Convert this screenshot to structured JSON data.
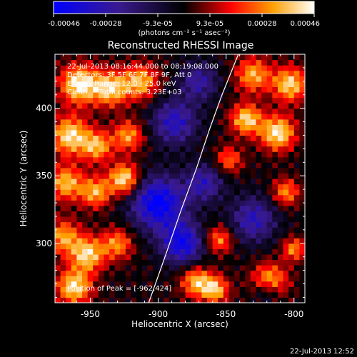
{
  "colorbar": {
    "tick_labels": [
      "-0.00046",
      "-0.00028",
      "-9.3e-05",
      "9.3e-05",
      "0.00028",
      "0.00046"
    ],
    "units_label": "(photons cm⁻² s⁻¹ asec⁻²)",
    "colormap": [
      "#0000ff",
      "#3a1a8f",
      "#000000",
      "#ff0000",
      "#ffa000",
      "#ffffff"
    ]
  },
  "chart_data": {
    "type": "heatmap",
    "title": "Reconstructed RHESSI Image",
    "xlabel": "Heliocentric X (arcsec)",
    "ylabel": "Heliocentric Y (arcsec)",
    "xlim": [
      -976,
      -792
    ],
    "ylim": [
      256,
      440
    ],
    "x_ticks": [
      -950,
      -900,
      -850,
      -800
    ],
    "x_tick_labels": [
      "-950",
      "-900",
      "-850",
      "-800"
    ],
    "y_ticks": [
      300,
      350,
      400
    ],
    "y_tick_labels": [
      "300",
      "350",
      "400"
    ],
    "color_range": [
      -0.00046,
      0.00046
    ],
    "annotations": [
      "22-Jul-2013 08:16:44.000 to 08:19:08.000",
      "Detectors: 3F 5F 6F 7F 8F 9F, Att 0",
      "Energy Range: 12.0 - 25.0 keV",
      "Clean     Total counts: 3.23E+03"
    ],
    "peak_label": "Position of Peak = [-962,424]",
    "limb_curve": {
      "x": [
        -907,
        -895,
        -883,
        -872,
        -862,
        -853,
        -843,
        -833
      ],
      "y": [
        256,
        290,
        325,
        355,
        385,
        410,
        435,
        460
      ]
    },
    "hot_regions": [
      {
        "x": -958,
        "y": 418,
        "sigma": 10,
        "value": 0.00046
      },
      {
        "x": -935,
        "y": 415,
        "sigma": 9,
        "value": 0.0004
      },
      {
        "x": -913,
        "y": 420,
        "sigma": 9,
        "value": 0.00036
      },
      {
        "x": -965,
        "y": 380,
        "sigma": 10,
        "value": 0.00042
      },
      {
        "x": -945,
        "y": 372,
        "sigma": 8,
        "value": 0.00034
      },
      {
        "x": -922,
        "y": 380,
        "sigma": 8,
        "value": 0.00032
      },
      {
        "x": -968,
        "y": 345,
        "sigma": 9,
        "value": 0.00036
      },
      {
        "x": -946,
        "y": 338,
        "sigma": 8,
        "value": 0.00034
      },
      {
        "x": -925,
        "y": 348,
        "sigma": 8,
        "value": 0.00044
      },
      {
        "x": -970,
        "y": 305,
        "sigma": 9,
        "value": 0.00032
      },
      {
        "x": -952,
        "y": 292,
        "sigma": 9,
        "value": 0.0004
      },
      {
        "x": -930,
        "y": 300,
        "sigma": 8,
        "value": 0.0003
      },
      {
        "x": -962,
        "y": 268,
        "sigma": 9,
        "value": 0.00042
      },
      {
        "x": -830,
        "y": 425,
        "sigma": 9,
        "value": 0.00034
      },
      {
        "x": -803,
        "y": 418,
        "sigma": 9,
        "value": 0.0004
      },
      {
        "x": -835,
        "y": 392,
        "sigma": 8,
        "value": 0.0004
      },
      {
        "x": -812,
        "y": 382,
        "sigma": 9,
        "value": 0.00044
      },
      {
        "x": -848,
        "y": 362,
        "sigma": 7,
        "value": 0.00026
      },
      {
        "x": -806,
        "y": 338,
        "sigma": 7,
        "value": 0.0003
      },
      {
        "x": -855,
        "y": 303,
        "sigma": 7,
        "value": 0.0003
      },
      {
        "x": -872,
        "y": 272,
        "sigma": 8,
        "value": 0.00036
      },
      {
        "x": -858,
        "y": 266,
        "sigma": 7,
        "value": 0.00036
      },
      {
        "x": -818,
        "y": 272,
        "sigma": 9,
        "value": 0.0004
      },
      {
        "x": -800,
        "y": 296,
        "sigma": 6,
        "value": 0.0003
      }
    ],
    "cold_regions": [
      {
        "x": -900,
        "y": 330,
        "sigma": 14,
        "value": -0.00046
      },
      {
        "x": -882,
        "y": 300,
        "sigma": 11,
        "value": -0.0004
      },
      {
        "x": -888,
        "y": 390,
        "sigma": 12,
        "value": -0.00032
      },
      {
        "x": -870,
        "y": 420,
        "sigma": 10,
        "value": -0.00026
      },
      {
        "x": -830,
        "y": 318,
        "sigma": 12,
        "value": -0.0003
      },
      {
        "x": -866,
        "y": 345,
        "sigma": 10,
        "value": -0.00028
      },
      {
        "x": -820,
        "y": 265,
        "sigma": 7,
        "value": -0.00025
      }
    ]
  },
  "footer": {
    "timestamp": "22-Jul-2013 12:52"
  }
}
